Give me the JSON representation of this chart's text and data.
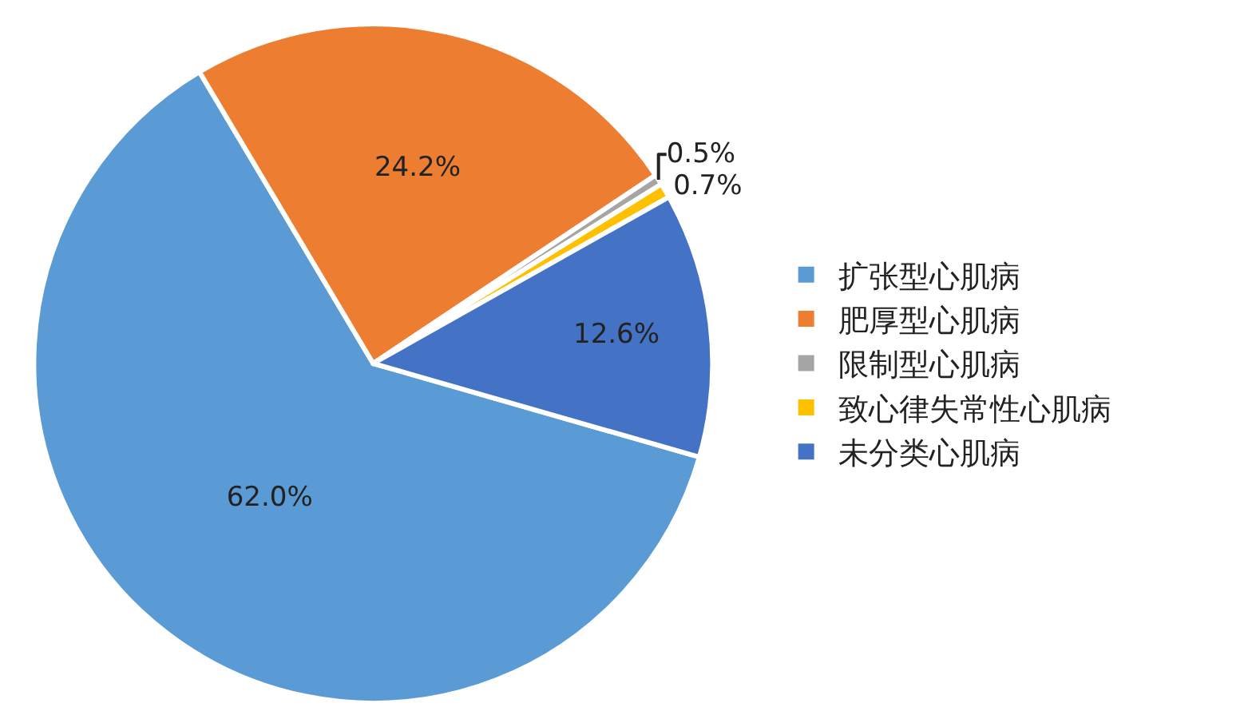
{
  "chart_data": {
    "type": "pie",
    "categories": [
      "扩张型心肌病",
      "肥厚型心肌病",
      "限制型心肌病",
      "致心律失常性心肌病",
      "未分类心肌病"
    ],
    "values": [
      62.0,
      24.2,
      0.5,
      0.7,
      12.6
    ],
    "colors": [
      "#5b9bd5",
      "#ed7d31",
      "#a5a5a5",
      "#ffc000",
      "#4472c4"
    ],
    "value_labels": [
      "62.0%",
      "24.2%",
      "0.5%",
      "0.7%",
      "12.6%"
    ],
    "legend": "right"
  }
}
